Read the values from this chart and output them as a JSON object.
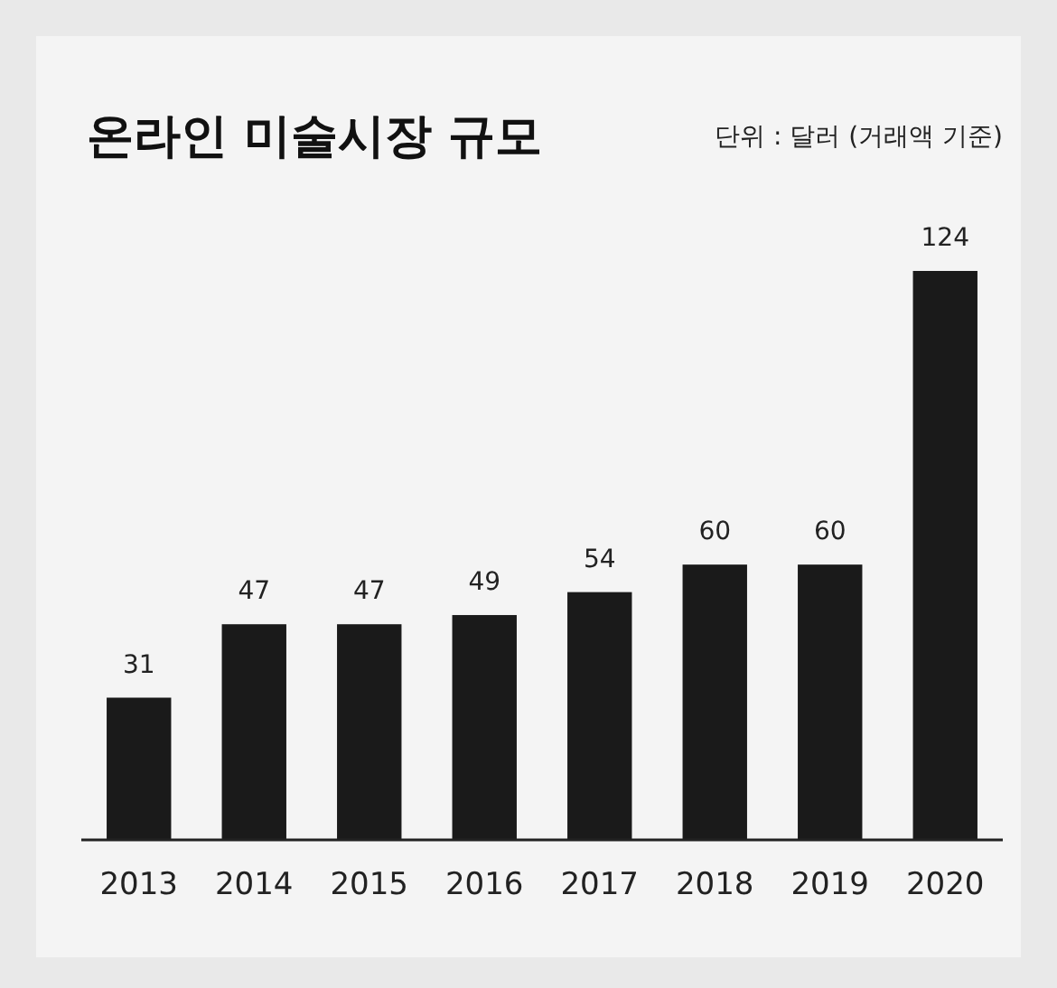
{
  "chart_data": {
    "type": "bar",
    "title": "온라인 미술시장 규모",
    "subtitle": "단위 : 달러 (거래액 기준)",
    "categories": [
      "2013",
      "2014",
      "2015",
      "2016",
      "2017",
      "2018",
      "2019",
      "2020"
    ],
    "values": [
      31,
      47,
      47,
      49,
      54,
      60,
      60,
      124
    ],
    "color": "#1a1a1a",
    "data_labels": true
  }
}
